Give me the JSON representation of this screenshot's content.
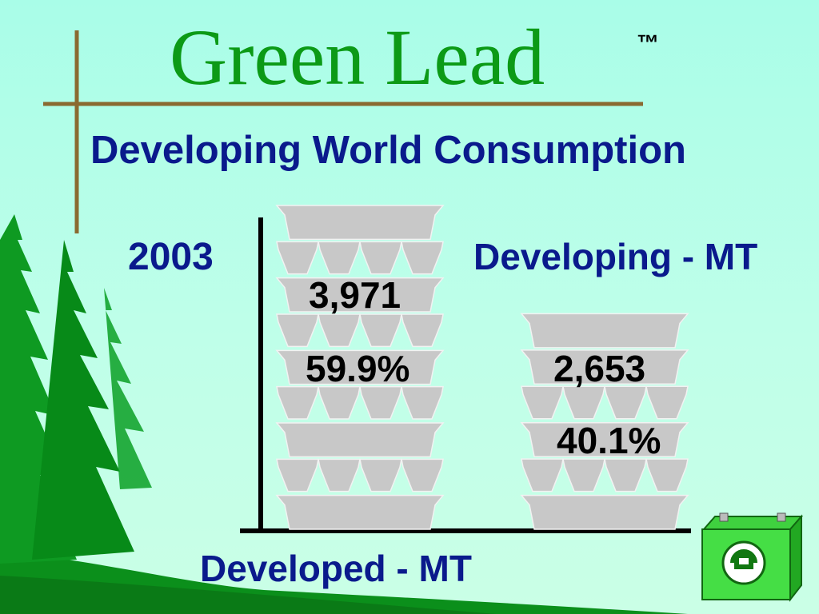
{
  "header": {
    "title": "Green Lead",
    "trademark": "™",
    "subtitle": "Developing World Consumption"
  },
  "colors": {
    "title": "#0c9a16",
    "text": "#0a1a8c",
    "ingot": "#c8c8c8",
    "frame": "#8a6a30",
    "tree": "#0a8a1a"
  },
  "icons": [
    "pine-tree-icon",
    "battery-recycle-icon"
  ],
  "chart_data": {
    "type": "bar",
    "title": "Developing World Consumption",
    "year": "2003",
    "series": [
      {
        "name": "Developed - MT",
        "value_label": "3,971",
        "value": 3971,
        "percent_label": "59.9%",
        "percent": 59.9
      },
      {
        "name": "Developing - MT",
        "value_label": "2,653",
        "value": 2653,
        "percent_label": "40.1%",
        "percent": 40.1
      }
    ]
  }
}
